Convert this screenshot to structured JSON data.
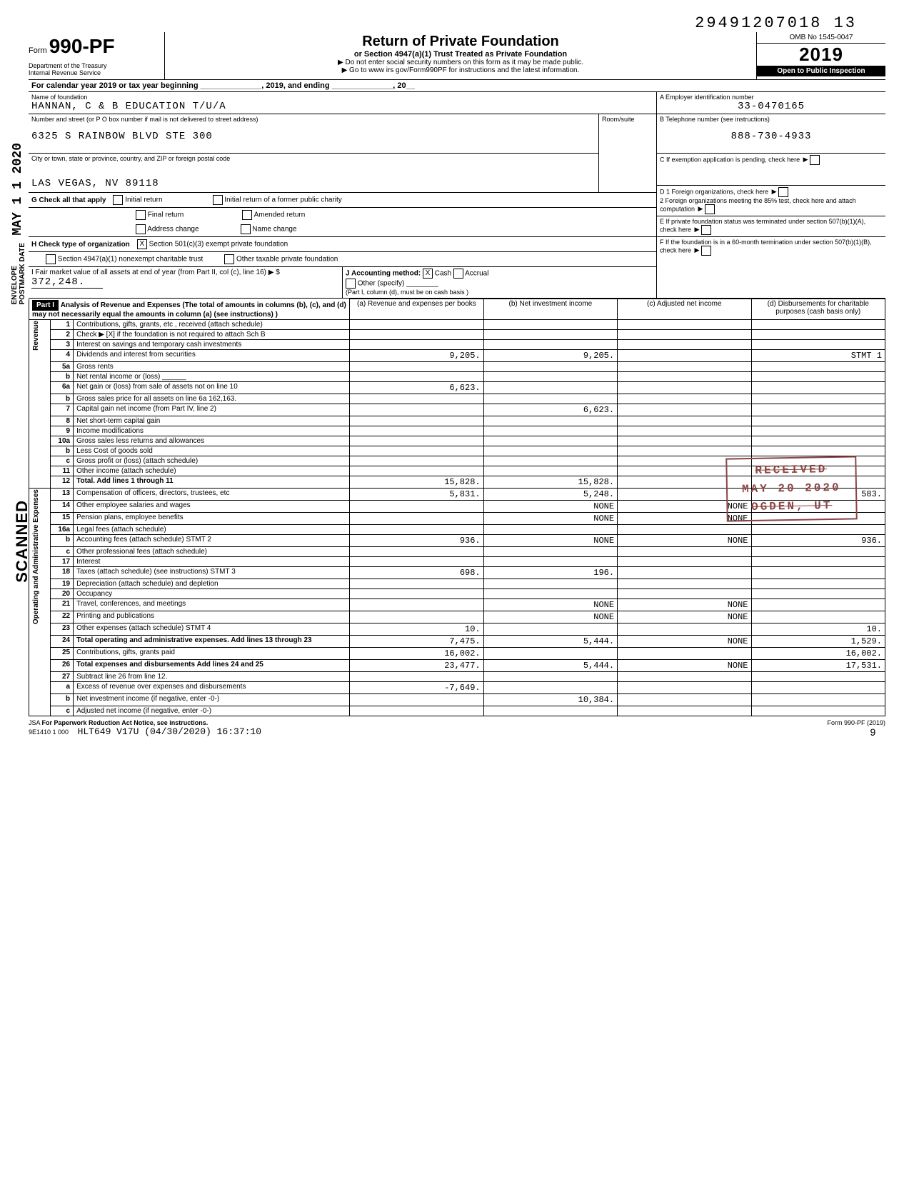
{
  "top_dln": "29491207018 13",
  "form": {
    "form_label": "Form",
    "form_number": "990-PF",
    "dept": "Department of the Treasury\nInternal Revenue Service",
    "title": "Return of Private Foundation",
    "subtitle": "or Section 4947(a)(1) Trust Treated as Private Foundation",
    "warn": "▶ Do not enter social security numbers on this form as it may be made public.",
    "goto": "▶ Go to www irs gov/Form990PF for instructions and the latest information.",
    "omb": "OMB No 1545-0047",
    "year": "2019",
    "inspect": "Open to Public Inspection"
  },
  "cal_year": "For calendar year 2019 or tax year beginning ______________, 2019, and ending ______________, 20__",
  "foundation": {
    "name_label": "Name of foundation",
    "name": "HANNAN, C & B EDUCATION T/U/A",
    "addr_label": "Number and street (or P O  box number if mail is not delivered to street address)",
    "address": "6325 S RAINBOW BLVD STE 300",
    "city_label": "City or town, state or province, country, and ZIP or foreign postal code",
    "city": "LAS VEGAS, NV 89118",
    "room_label": "Room/suite",
    "ein_label": "A  Employer identification number",
    "ein": "33-0470165",
    "phone_label": "B  Telephone number (see instructions)",
    "phone": "888-730-4933",
    "c_label": "C  If exemption application is pending, check here",
    "d1": "D  1 Foreign organizations, check here",
    "d2": "2  Foreign organizations meeting the 85% test, check here and attach computation",
    "e_label": "E  If private foundation status was terminated under section 507(b)(1)(A), check here",
    "f_label": "F  If the foundation is in a 60-month termination under section 507(b)(1)(B), check here"
  },
  "g": {
    "label": "G  Check all that apply",
    "opts": [
      "Initial return",
      "Final return",
      "Address change",
      "Initial return of a former public charity",
      "Amended return",
      "Name change"
    ]
  },
  "h": {
    "label": "H  Check type of organization",
    "opt1": "Section 501(c)(3) exempt private foundation",
    "opt2": "Section 4947(a)(1) nonexempt charitable trust",
    "opt3": "Other taxable private foundation"
  },
  "i": {
    "label": "I  Fair market value of all assets at end of year (from Part II, col (c), line 16) ▶ $",
    "value": "372,248."
  },
  "j": {
    "label": "J  Accounting method:",
    "cash": "Cash",
    "accrual": "Accrual",
    "other": "Other (specify)",
    "note": "(Part I, column (d), must be on cash basis )"
  },
  "part1": {
    "header": "Part I",
    "title": "Analysis of Revenue and Expenses (The total of amounts in columns (b), (c), and (d) may not necessarily equal the amounts in column (a) (see instructions) )",
    "cols": [
      "(a) Revenue and expenses per books",
      "(b) Net investment income",
      "(c) Adjusted net income",
      "(d) Disbursements for charitable purposes (cash basis only)"
    ]
  },
  "rows": [
    {
      "n": "1",
      "desc": "Contributions, gifts, grants, etc , received (attach schedule)",
      "a": "",
      "b": "",
      "c": "",
      "d": ""
    },
    {
      "n": "2",
      "desc": "Check ▶  [X]  if the foundation is not required to attach Sch B",
      "a": "",
      "b": "",
      "c": "",
      "d": ""
    },
    {
      "n": "3",
      "desc": "Interest on savings and temporary cash investments",
      "a": "",
      "b": "",
      "c": "",
      "d": ""
    },
    {
      "n": "4",
      "desc": "Dividends and interest from securities",
      "a": "9,205.",
      "b": "9,205.",
      "c": "",
      "d": "STMT 1"
    },
    {
      "n": "5a",
      "desc": "Gross rents",
      "a": "",
      "b": "",
      "c": "",
      "d": ""
    },
    {
      "n": "b",
      "desc": "Net rental income or (loss) ______",
      "a": "",
      "b": "",
      "c": "",
      "d": ""
    },
    {
      "n": "6a",
      "desc": "Net gain or (loss) from sale of assets not on line 10",
      "a": "6,623.",
      "b": "",
      "c": "",
      "d": ""
    },
    {
      "n": "b",
      "desc": "Gross sales price for all assets on line 6a    162,163.",
      "a": "",
      "b": "",
      "c": "",
      "d": ""
    },
    {
      "n": "7",
      "desc": "Capital gain net income (from Part IV, line 2)",
      "a": "",
      "b": "6,623.",
      "c": "",
      "d": ""
    },
    {
      "n": "8",
      "desc": "Net short-term capital gain",
      "a": "",
      "b": "",
      "c": "",
      "d": ""
    },
    {
      "n": "9",
      "desc": "Income modifications",
      "a": "",
      "b": "",
      "c": "",
      "d": ""
    },
    {
      "n": "10a",
      "desc": "Gross sales less returns and allowances",
      "a": "",
      "b": "",
      "c": "",
      "d": ""
    },
    {
      "n": "b",
      "desc": "Less Cost of goods sold",
      "a": "",
      "b": "",
      "c": "",
      "d": ""
    },
    {
      "n": "c",
      "desc": "Gross profit or (loss) (attach schedule)",
      "a": "",
      "b": "",
      "c": "",
      "d": ""
    },
    {
      "n": "11",
      "desc": "Other income (attach schedule)",
      "a": "",
      "b": "",
      "c": "",
      "d": ""
    },
    {
      "n": "12",
      "desc": "Total. Add lines 1 through 11",
      "a": "15,828.",
      "b": "15,828.",
      "c": "",
      "d": ""
    },
    {
      "n": "13",
      "desc": "Compensation of officers, directors, trustees, etc",
      "a": "5,831.",
      "b": "5,248.",
      "c": "",
      "d": "583."
    },
    {
      "n": "14",
      "desc": "Other employee salaries and wages",
      "a": "",
      "b": "NONE",
      "c": "NONE",
      "d": ""
    },
    {
      "n": "15",
      "desc": "Pension plans, employee benefits",
      "a": "",
      "b": "NONE",
      "c": "NONE",
      "d": ""
    },
    {
      "n": "16a",
      "desc": "Legal fees (attach schedule)",
      "a": "",
      "b": "",
      "c": "",
      "d": ""
    },
    {
      "n": "b",
      "desc": "Accounting fees (attach schedule) STMT 2",
      "a": "936.",
      "b": "NONE",
      "c": "NONE",
      "d": "936."
    },
    {
      "n": "c",
      "desc": "Other professional fees (attach schedule)",
      "a": "",
      "b": "",
      "c": "",
      "d": ""
    },
    {
      "n": "17",
      "desc": "Interest",
      "a": "",
      "b": "",
      "c": "",
      "d": ""
    },
    {
      "n": "18",
      "desc": "Taxes (attach schedule) (see instructions) STMT 3",
      "a": "698.",
      "b": "196.",
      "c": "",
      "d": ""
    },
    {
      "n": "19",
      "desc": "Depreciation (attach schedule) and depletion",
      "a": "",
      "b": "",
      "c": "",
      "d": ""
    },
    {
      "n": "20",
      "desc": "Occupancy",
      "a": "",
      "b": "",
      "c": "",
      "d": ""
    },
    {
      "n": "21",
      "desc": "Travel, conferences, and meetings",
      "a": "",
      "b": "NONE",
      "c": "NONE",
      "d": ""
    },
    {
      "n": "22",
      "desc": "Printing and publications",
      "a": "",
      "b": "NONE",
      "c": "NONE",
      "d": ""
    },
    {
      "n": "23",
      "desc": "Other expenses (attach schedule) STMT 4",
      "a": "10.",
      "b": "",
      "c": "",
      "d": "10."
    },
    {
      "n": "24",
      "desc": "Total operating and administrative expenses. Add lines 13 through 23",
      "a": "7,475.",
      "b": "5,444.",
      "c": "NONE",
      "d": "1,529."
    },
    {
      "n": "25",
      "desc": "Contributions, gifts, grants paid",
      "a": "16,002.",
      "b": "",
      "c": "",
      "d": "16,002."
    },
    {
      "n": "26",
      "desc": "Total expenses and disbursements Add lines 24 and 25",
      "a": "23,477.",
      "b": "5,444.",
      "c": "NONE",
      "d": "17,531."
    },
    {
      "n": "27",
      "desc": "Subtract line 26 from line 12.",
      "a": "",
      "b": "",
      "c": "",
      "d": ""
    },
    {
      "n": "a",
      "desc": "Excess of revenue over expenses and disbursements",
      "a": "-7,649.",
      "b": "",
      "c": "",
      "d": ""
    },
    {
      "n": "b",
      "desc": "Net investment income (if negative, enter -0-)",
      "a": "",
      "b": "10,384.",
      "c": "",
      "d": ""
    },
    {
      "n": "c",
      "desc": "Adjusted net income (if negative, enter -0-)",
      "a": "",
      "b": "",
      "c": "",
      "d": ""
    }
  ],
  "side_labels": {
    "revenue": "Revenue",
    "expenses": "Operating and Administrative Expenses"
  },
  "footer": {
    "jsa": "JSA",
    "paperwork": "For Paperwork Reduction Act Notice, see instructions.",
    "code": "9E1410 1 000",
    "hlt": "HLT649 V17U (04/30/2020) 16:37:10",
    "form_ref": "Form 990-PF (2019)",
    "page": "9"
  },
  "stamps": {
    "date": "MAY 1 1 2020",
    "envelope": "ENVELOPE\nPOSTMARK DATE",
    "scanned": "SCANNED",
    "received": "RECEIVED",
    "received_date": "MAY 20 2020",
    "received_loc": "OGDEN, UT"
  }
}
